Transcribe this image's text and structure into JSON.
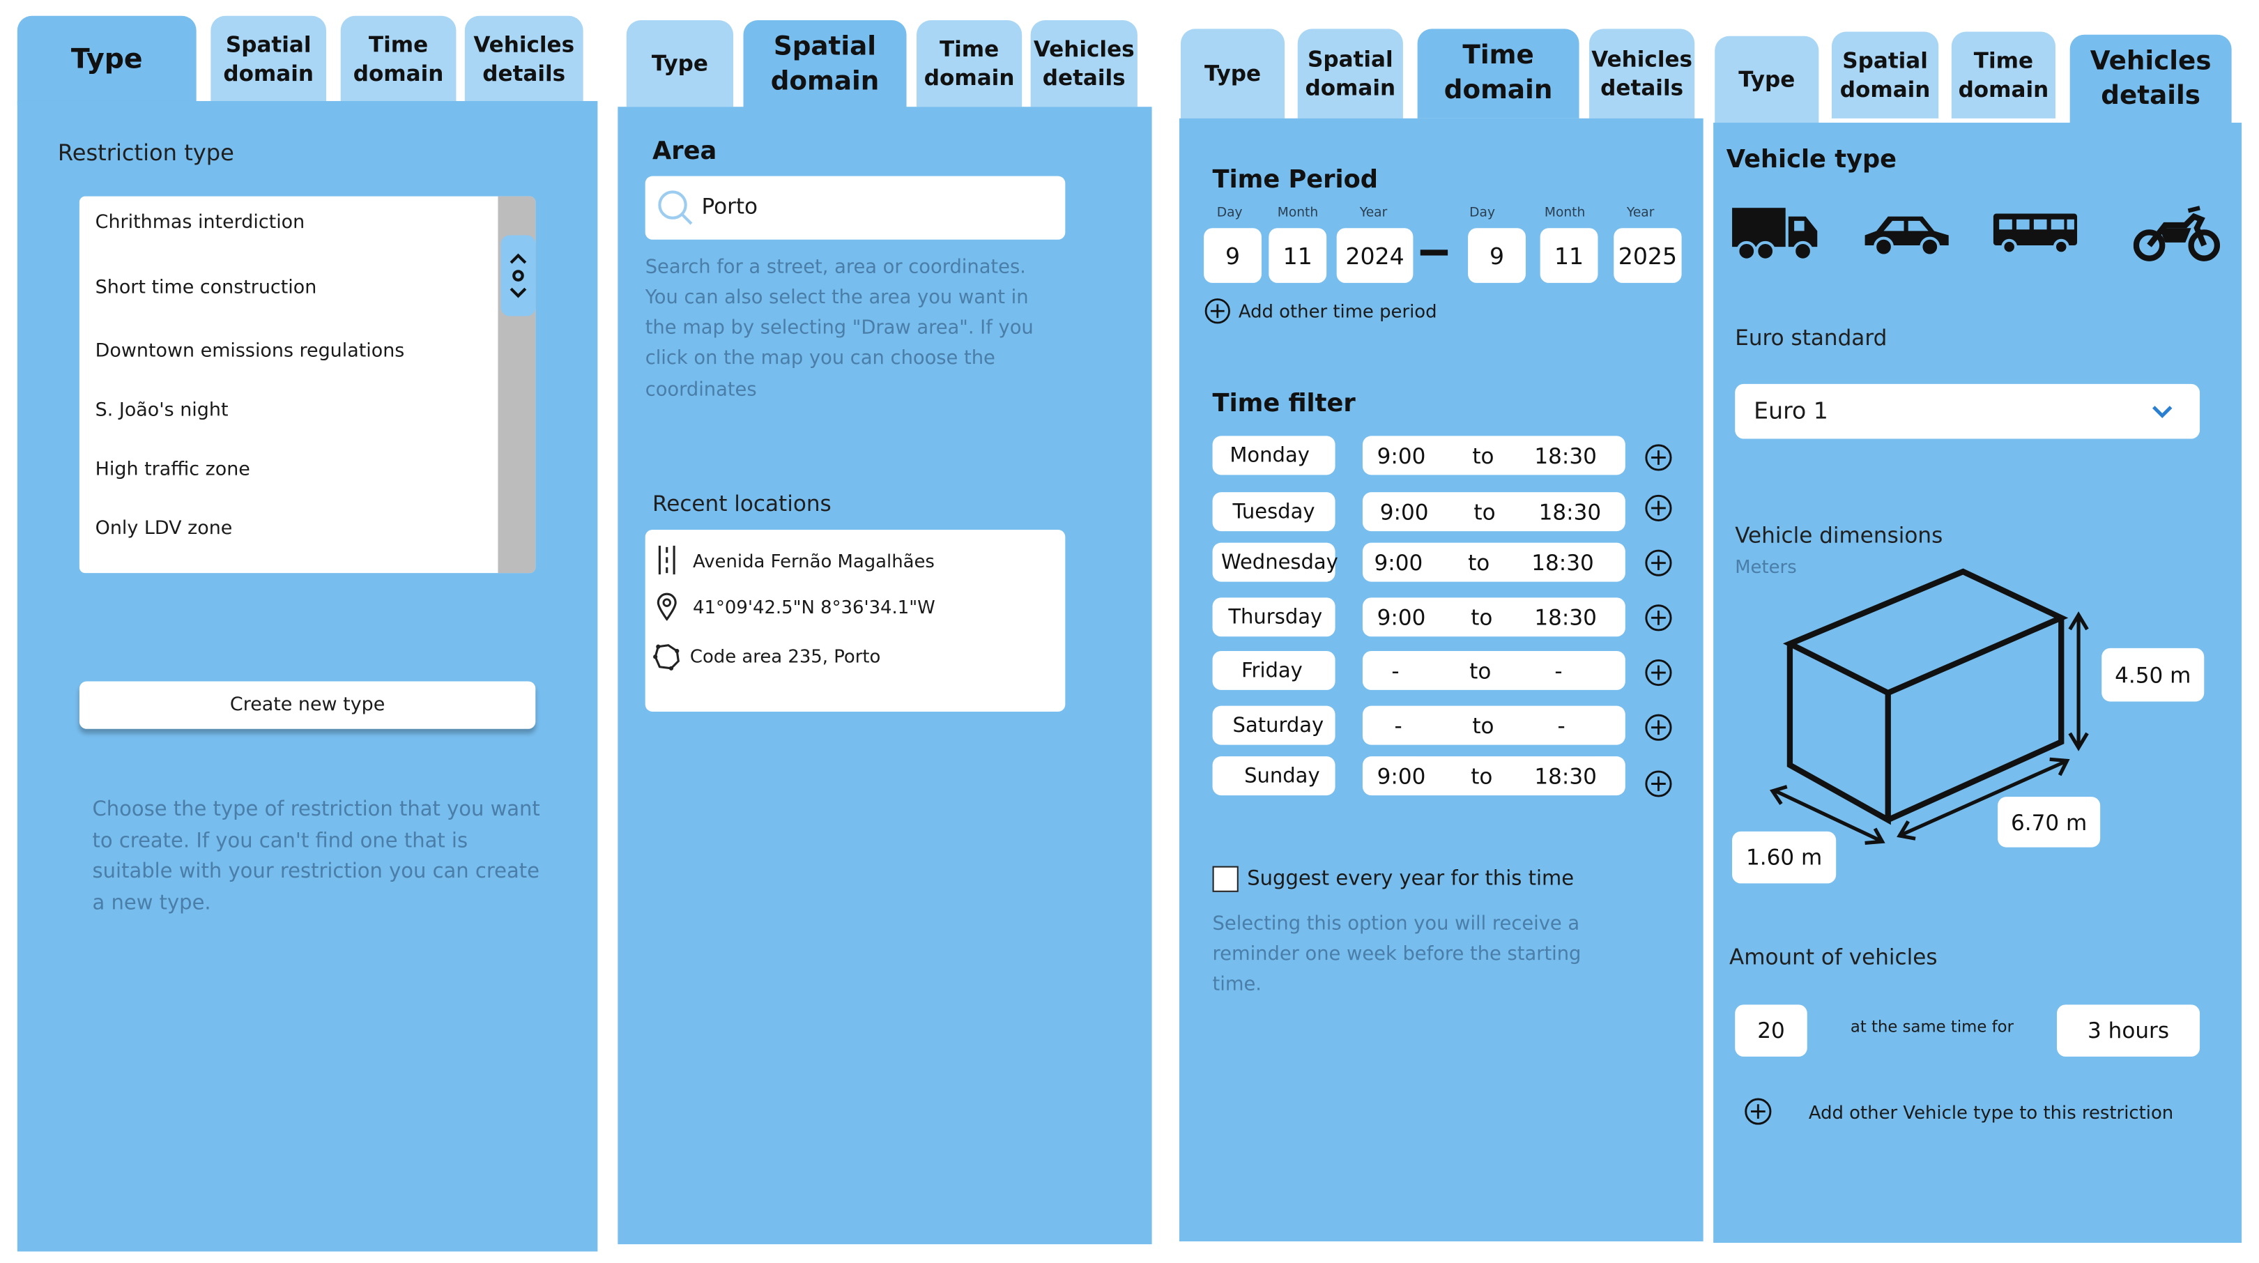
{
  "colors": {
    "panel": "#77bdee",
    "tab_inactive": "#a9d6f5",
    "white": "#ffffff"
  },
  "tabs": {
    "type": "Type",
    "spatial": "Spatial\ndomain",
    "time": "Time\ndomain",
    "vehicles": "Vehicles\ndetails"
  },
  "type_panel": {
    "title": "Restriction type",
    "items": [
      "Chrithmas interdiction",
      "Short time construction",
      "Downtown emissions regulations",
      "S. João's night",
      "High traffic zone",
      "Only LDV zone"
    ],
    "create_button": "Create new type",
    "help": "Choose the type of restriction that you want to create. If you can't find one that is suitable with your restriction you can create a new type."
  },
  "spatial_panel": {
    "title": "Area",
    "search_value": "Porto",
    "help": "Search for a street, area or coordinates. You can also select the area you want in the map by selecting \"Draw area\". If you click on the map you can choose the coordinates",
    "recent_title": "Recent locations",
    "recent": [
      {
        "icon": "road-icon",
        "text": "Avenida Fernão Magalhães"
      },
      {
        "icon": "location-pin-icon",
        "text": "41°09'42.5\"N 8°36'34.1\"W"
      },
      {
        "icon": "area-icon",
        "text": "Code area 235, Porto"
      }
    ]
  },
  "time_panel": {
    "period_title": "Time Period",
    "labels": {
      "day": "Day",
      "month": "Month",
      "year": "Year"
    },
    "start": {
      "day": "9",
      "month": "11",
      "year": "2024"
    },
    "end": {
      "day": "9",
      "month": "11",
      "year": "2025"
    },
    "add_period": "Add other time period",
    "filter_title": "Time filter",
    "to_label": "to",
    "days": [
      {
        "name": "Monday",
        "from": "9:00",
        "to": "18:30"
      },
      {
        "name": "Tuesday",
        "from": "9:00",
        "to": "18:30"
      },
      {
        "name": "Wednesday",
        "from": "9:00",
        "to": "18:30"
      },
      {
        "name": "Thursday",
        "from": "9:00",
        "to": "18:30"
      },
      {
        "name": "Friday",
        "from": "-",
        "to": "-"
      },
      {
        "name": "Saturday",
        "from": "-",
        "to": "-"
      },
      {
        "name": "Sunday",
        "from": "9:00",
        "to": "18:30"
      }
    ],
    "suggest_label": "Suggest every year for this time",
    "suggest_help": "Selecting this option you will receive a reminder one week before the starting time."
  },
  "vehicle_panel": {
    "type_title": "Vehicle type",
    "vehicle_icons": [
      "truck-icon",
      "car-icon",
      "bus-icon",
      "motorcycle-icon"
    ],
    "euro_title": "Euro standard",
    "euro_value": "Euro 1",
    "dims_title": "Vehicle dimensions",
    "dims_unit": "Meters",
    "height": "4.50 m",
    "length": "6.70 m",
    "width": "1.60 m",
    "amount_title": "Amount of vehicles",
    "amount_value": "20",
    "same_time_label": "at the same time for",
    "duration": "3 hours",
    "add_vehicle": "Add other Vehicle type to this restriction"
  }
}
